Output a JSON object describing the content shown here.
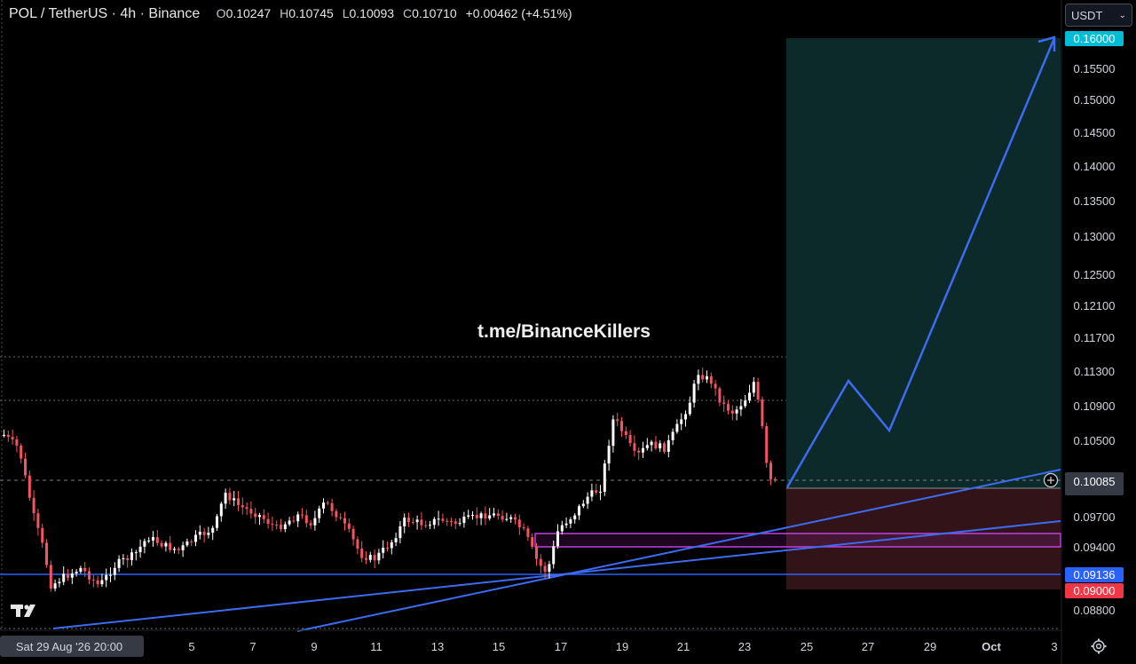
{
  "header": {
    "symbol": "POL / TetherUS · 4h · Binance",
    "o_label": "O",
    "o_value": "0.10247",
    "h_label": "H",
    "h_value": "0.10745",
    "l_label": "L",
    "l_value": "0.10093",
    "c_label": "C",
    "c_value": "0.10710",
    "change": "+0.00462 (+4.51%)"
  },
  "currency_select": {
    "value": "USDT"
  },
  "watermark": "t.me/BinanceKillers",
  "colors": {
    "up": "#ffffff",
    "down": "#f7525f",
    "trendline": "#2962ff",
    "profit_zone": "#0e2e2e",
    "loss_zone": "#3a1418",
    "zone_border": "#c040e0",
    "target_badge": "#00bcd4",
    "stop_badge": "#f23645",
    "support_badge": "#2962ff",
    "current_badge": "#363a45"
  },
  "chart_data": {
    "type": "candlestick",
    "symbol": "POL/USDT",
    "timeframe": "4h",
    "price_axis_ticks": [
      "0.15500",
      "0.15000",
      "0.14500",
      "0.14000",
      "0.13500",
      "0.13000",
      "0.12500",
      "0.12100",
      "0.11700",
      "0.11300",
      "0.10900",
      "0.10500",
      "0.09700",
      "0.09400",
      "0.08800"
    ],
    "price_badges": {
      "target": "0.16000",
      "current": "0.10085",
      "support": "0.09136",
      "stop": "0.09000"
    },
    "x_axis_labels": [
      "Sat 29 Aug '26   20:00",
      "5",
      "7",
      "9",
      "11",
      "13",
      "15",
      "17",
      "19",
      "21",
      "23",
      "25",
      "27",
      "29",
      "Oct",
      "3"
    ],
    "projection_path": [
      {
        "date": "24",
        "price": 0.1002
      },
      {
        "date": "26",
        "price": 0.1113
      },
      {
        "date": "27.5",
        "price": 0.1064
      },
      {
        "date": "3",
        "price": 0.16
      }
    ],
    "horizontal_levels": [
      0.1145,
      0.11,
      0.1015,
      0.0913,
      0.088
    ],
    "zone_top": 0.0959,
    "zone_bottom": 0.094
  }
}
